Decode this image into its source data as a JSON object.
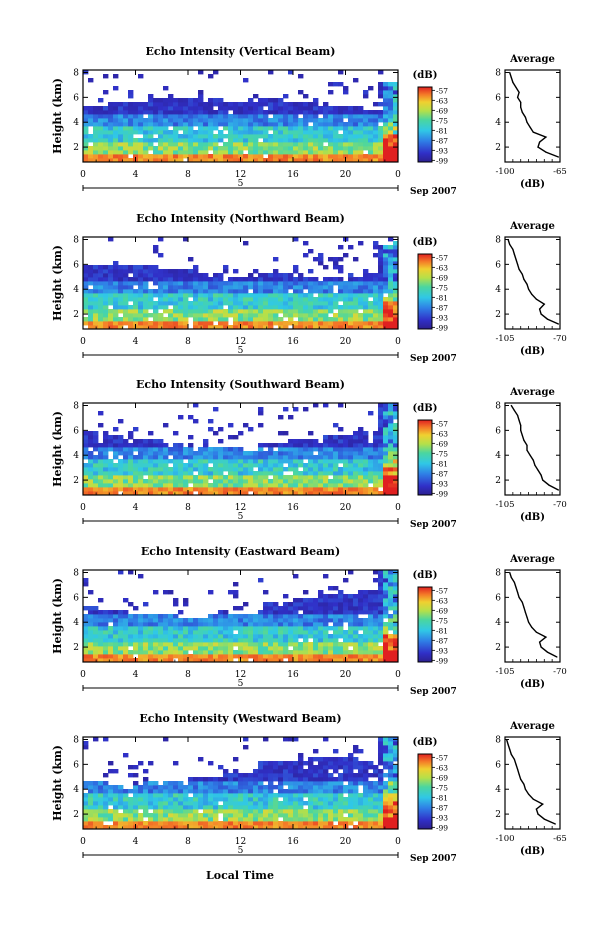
{
  "figure": {
    "xlabel": "Local Time"
  },
  "chart_data": [
    {
      "type": "heatmap",
      "title": "Echo Intensity (Vertical Beam)",
      "ylabel": "Height (km)",
      "x_ticks": [
        "0",
        "4",
        "8",
        "12",
        "16",
        "20",
        "0"
      ],
      "xlim": [
        0,
        24
      ],
      "y_ticks": [
        "2",
        "4",
        "6",
        "8"
      ],
      "ylim": [
        0.8,
        8.2
      ],
      "date_label": "5",
      "month_label": "Sep 2007",
      "colorbar": {
        "unit": "(dB)",
        "ticks": [
          "-57",
          "-63",
          "-69",
          "-75",
          "-81",
          "-87",
          "-93",
          "-99"
        ],
        "range": [
          -100,
          -55
        ]
      },
      "profile": {
        "type": "line",
        "title": "Average",
        "xlabel": "(dB)",
        "x_ticks": [
          "-100",
          "-65"
        ],
        "xlim": [
          -100,
          -65
        ],
        "y_ticks": [
          "2",
          "4",
          "6",
          "8"
        ],
        "ylim": [
          0.8,
          8.2
        ],
        "height": [
          1.2,
          1.6,
          2.0,
          2.4,
          2.8,
          3.2,
          3.6,
          4.0,
          4.4,
          4.8,
          5.2,
          5.6,
          6.0,
          6.4,
          6.8,
          7.2,
          7.6,
          8.0
        ],
        "db": [
          -66,
          -74,
          -79,
          -78,
          -74,
          -82,
          -84,
          -86,
          -87,
          -89,
          -90,
          -90,
          -92,
          -91,
          -93,
          -95,
          -96,
          -97
        ]
      }
    },
    {
      "type": "heatmap",
      "title": "Echo Intensity (Northward Beam)",
      "ylabel": "Height (km)",
      "x_ticks": [
        "0",
        "4",
        "8",
        "12",
        "16",
        "20",
        "0"
      ],
      "xlim": [
        0,
        24
      ],
      "y_ticks": [
        "2",
        "4",
        "6",
        "8"
      ],
      "ylim": [
        0.8,
        8.2
      ],
      "date_label": "5",
      "month_label": "Sep 2007",
      "colorbar": {
        "unit": "(dB)",
        "ticks": [
          "-57",
          "-63",
          "-69",
          "-75",
          "-81",
          "-87",
          "-93",
          "-99"
        ],
        "range": [
          -100,
          -55
        ]
      },
      "profile": {
        "type": "line",
        "title": "Average",
        "xlabel": "(dB)",
        "x_ticks": [
          "-105",
          "-70"
        ],
        "xlim": [
          -105,
          -70
        ],
        "y_ticks": [
          "2",
          "4",
          "6",
          "8"
        ],
        "ylim": [
          0.8,
          8.2
        ],
        "height": [
          1.2,
          1.6,
          2.0,
          2.4,
          2.8,
          3.2,
          3.6,
          4.0,
          4.4,
          4.8,
          5.2,
          5.6,
          6.0,
          6.4,
          6.8,
          7.2,
          7.6,
          8.0
        ],
        "db": [
          -71,
          -78,
          -82,
          -83,
          -80,
          -85,
          -88,
          -90,
          -91,
          -93,
          -94,
          -96,
          -97,
          -98,
          -99,
          -100,
          -102,
          -103
        ]
      }
    },
    {
      "type": "heatmap",
      "title": "Echo Intensity (Southward Beam)",
      "ylabel": "Height (km)",
      "x_ticks": [
        "0",
        "4",
        "8",
        "12",
        "16",
        "20",
        "0"
      ],
      "xlim": [
        0,
        24
      ],
      "y_ticks": [
        "2",
        "4",
        "6",
        "8"
      ],
      "ylim": [
        0.8,
        8.2
      ],
      "date_label": "5",
      "month_label": "Sep 2007",
      "colorbar": {
        "unit": "(dB)",
        "ticks": [
          "-57",
          "-63",
          "-69",
          "-75",
          "-81",
          "-87",
          "-93",
          "-99"
        ],
        "range": [
          -100,
          -55
        ]
      },
      "profile": {
        "type": "line",
        "title": "Average",
        "xlabel": "(dB)",
        "x_ticks": [
          "-105",
          "-70"
        ],
        "xlim": [
          -105,
          -70
        ],
        "y_ticks": [
          "2",
          "4",
          "6",
          "8"
        ],
        "ylim": [
          0.8,
          8.2
        ],
        "height": [
          1.2,
          1.6,
          2.0,
          2.4,
          2.8,
          3.2,
          3.6,
          4.0,
          4.4,
          4.8,
          5.2,
          5.6,
          6.0,
          6.4,
          6.8,
          7.2,
          7.6,
          8.0
        ],
        "db": [
          -71,
          -77,
          -81,
          -82,
          -84,
          -86,
          -87,
          -89,
          -91,
          -91,
          -93,
          -94,
          -95,
          -95,
          -96,
          -97,
          -99,
          -101
        ]
      }
    },
    {
      "type": "heatmap",
      "title": "Echo Intensity (Eastward Beam)",
      "ylabel": "Height (km)",
      "x_ticks": [
        "0",
        "4",
        "8",
        "12",
        "16",
        "20",
        "0"
      ],
      "xlim": [
        0,
        24
      ],
      "y_ticks": [
        "2",
        "4",
        "6",
        "8"
      ],
      "ylim": [
        0.8,
        8.2
      ],
      "date_label": "5",
      "month_label": "Sep 2007",
      "colorbar": {
        "unit": "(dB)",
        "ticks": [
          "-57",
          "-63",
          "-69",
          "-75",
          "-81",
          "-87",
          "-93",
          "-99"
        ],
        "range": [
          -100,
          -55
        ]
      },
      "profile": {
        "type": "line",
        "title": "Average",
        "xlabel": "(dB)",
        "x_ticks": [
          "-105",
          "-70"
        ],
        "xlim": [
          -105,
          -70
        ],
        "y_ticks": [
          "2",
          "4",
          "6",
          "8"
        ],
        "ylim": [
          0.8,
          8.2
        ],
        "height": [
          1.2,
          1.6,
          2.0,
          2.4,
          2.8,
          3.2,
          3.6,
          4.0,
          4.4,
          4.8,
          5.2,
          5.6,
          6.0,
          6.4,
          6.8,
          7.2,
          7.6,
          8.0
        ],
        "db": [
          -72,
          -78,
          -82,
          -83,
          -79,
          -85,
          -88,
          -90,
          -91,
          -92,
          -93,
          -94,
          -96,
          -97,
          -98,
          -99,
          -101,
          -102
        ]
      }
    },
    {
      "type": "heatmap",
      "title": "Echo Intensity (Westward Beam)",
      "ylabel": "Height (km)",
      "x_ticks": [
        "0",
        "4",
        "8",
        "12",
        "16",
        "20",
        "0"
      ],
      "xlim": [
        0,
        24
      ],
      "y_ticks": [
        "2",
        "4",
        "6",
        "8"
      ],
      "ylim": [
        0.8,
        8.2
      ],
      "date_label": "5",
      "month_label": "Sep 2007",
      "colorbar": {
        "unit": "(dB)",
        "ticks": [
          "-57",
          "-63",
          "-69",
          "-75",
          "-81",
          "-87",
          "-93",
          "-99"
        ],
        "range": [
          -100,
          -55
        ]
      },
      "profile": {
        "type": "line",
        "title": "Average",
        "xlabel": "(dB)",
        "x_ticks": [
          "-100",
          "-65"
        ],
        "xlim": [
          -100,
          -65
        ],
        "y_ticks": [
          "2",
          "4",
          "6",
          "8"
        ],
        "ylim": [
          0.8,
          8.2
        ],
        "height": [
          1.2,
          1.6,
          2.0,
          2.4,
          2.8,
          3.2,
          3.6,
          4.0,
          4.4,
          4.8,
          5.2,
          5.6,
          6.0,
          6.4,
          6.8,
          7.2,
          7.6,
          8.0
        ],
        "db": [
          -68,
          -75,
          -79,
          -80,
          -76,
          -82,
          -85,
          -87,
          -88,
          -90,
          -91,
          -92,
          -93,
          -94,
          -96,
          -97,
          -98,
          -99
        ]
      }
    }
  ]
}
